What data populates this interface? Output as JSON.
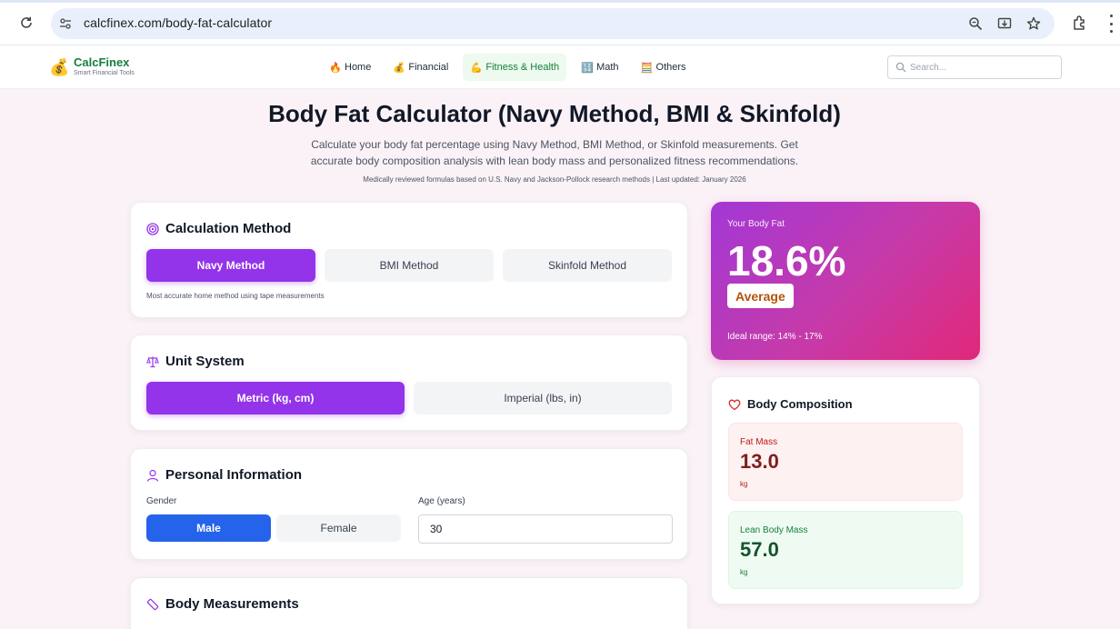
{
  "browser": {
    "url": "calcfinex.com/body-fat-calculator",
    "icons": [
      "reload-icon",
      "site-settings-icon",
      "zoom-icon",
      "install-app-icon",
      "bookmark-star-icon",
      "extensions-icon",
      "menu-icon"
    ]
  },
  "site": {
    "logo_name": "CalcFinex",
    "logo_tagline": "Smart Financial Tools",
    "nav": [
      {
        "label": "Home",
        "icon": "🔥"
      },
      {
        "label": "Financial",
        "icon": "💰"
      },
      {
        "label": "Fitness & Health",
        "icon": "💪",
        "active": true
      },
      {
        "label": "Math",
        "icon": "🔢"
      },
      {
        "label": "Others",
        "icon": "🧮"
      }
    ],
    "search_placeholder": "Search..."
  },
  "hero": {
    "title": "Body Fat Calculator (Navy Method, BMI & Skinfold)",
    "subtitle": "Calculate your body fat percentage using Navy Method, BMI Method, or Skinfold measurements. Get accurate body composition analysis with lean body mass and personalized fitness recommendations.",
    "reviewed": "Medically reviewed formulas based on U.S. Navy and Jackson-Pollock research methods | Last updated: January 2026"
  },
  "method": {
    "title": "Calculation Method",
    "options": [
      "Navy Method",
      "BMI Method",
      "Skinfold Method"
    ],
    "selected": "Navy Method",
    "hint": "Most accurate home method using tape measurements"
  },
  "units": {
    "title": "Unit System",
    "options": [
      "Metric (kg, cm)",
      "Imperial (lbs, in)"
    ],
    "selected": "Metric (kg, cm)"
  },
  "personal": {
    "title": "Personal Information",
    "gender_label": "Gender",
    "gender_options": [
      "Male",
      "Female"
    ],
    "gender_selected": "Male",
    "age_label": "Age (years)",
    "age_value": "30"
  },
  "measurements": {
    "title": "Body Measurements"
  },
  "result": {
    "label": "Your Body Fat",
    "value": "18.6%",
    "category": "Average",
    "ideal_range": "Ideal range: 14% - 17%"
  },
  "composition": {
    "title": "Body Composition",
    "fat_mass_label": "Fat Mass",
    "fat_mass_value": "13.0",
    "fat_mass_unit": "kg",
    "lean_mass_label": "Lean Body Mass",
    "lean_mass_value": "57.0",
    "lean_mass_unit": "kg"
  },
  "colors": {
    "accent": "#9333ea",
    "male_button": "#2563eb",
    "brand_green": "#15803d",
    "result_gradient_start": "#a238d6",
    "result_gradient_end": "#e02879"
  }
}
